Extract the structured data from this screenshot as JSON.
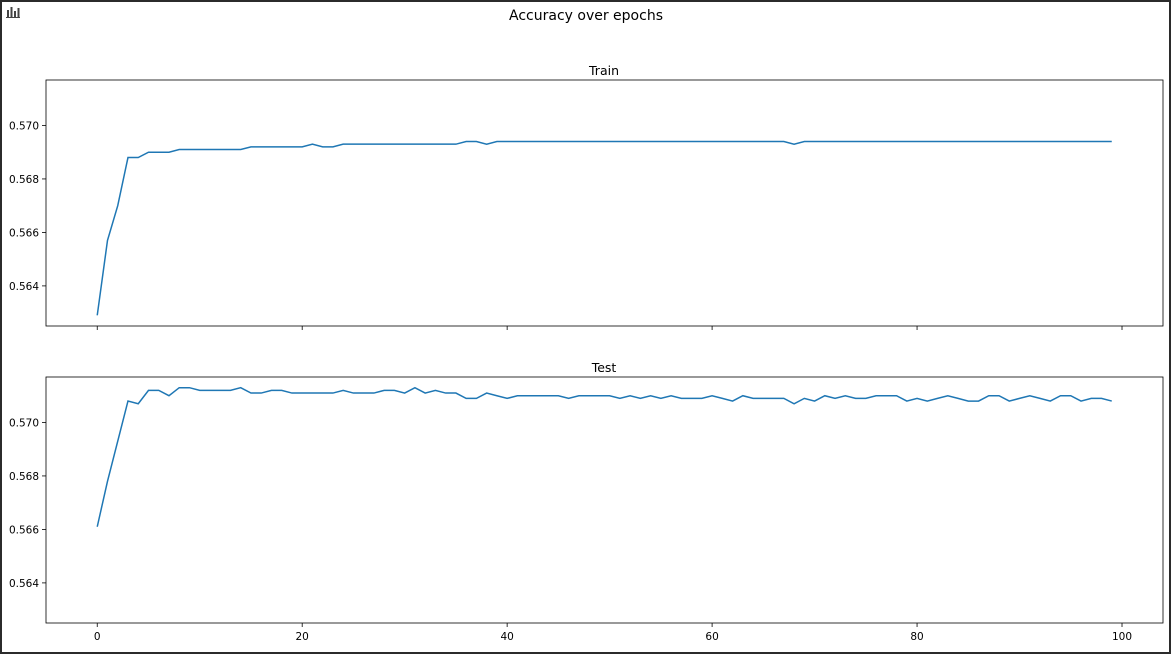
{
  "window": {
    "toolbar_icon": "bar-chart-icon"
  },
  "chart_data": {
    "type": "line",
    "suptitle": "Accuracy over epochs",
    "shared_x": true,
    "xlim": [
      -5,
      104
    ],
    "xticks": [
      0,
      20,
      40,
      60,
      80,
      100
    ],
    "line_color": "#1f77b4",
    "subplots": [
      {
        "title": "Train",
        "ylim": [
          0.5625,
          0.5717
        ],
        "yticks": [
          0.564,
          0.566,
          0.568,
          0.57
        ],
        "ytick_labels": [
          "0.564",
          "0.566",
          "0.568",
          "0.570"
        ],
        "series": [
          {
            "x": [
              0,
              1,
              2,
              3,
              4,
              5,
              6,
              7,
              8,
              9,
              10,
              11,
              12,
              13,
              14,
              15,
              16,
              17,
              18,
              19,
              20,
              21,
              22,
              23,
              24,
              25,
              26,
              27,
              28,
              29,
              30,
              31,
              32,
              33,
              34,
              35,
              36,
              37,
              38,
              39,
              40,
              41,
              42,
              43,
              44,
              45,
              46,
              47,
              48,
              49,
              50,
              51,
              52,
              53,
              54,
              55,
              56,
              57,
              58,
              59,
              60,
              61,
              62,
              63,
              64,
              65,
              66,
              67,
              68,
              69,
              70,
              71,
              72,
              73,
              74,
              75,
              76,
              77,
              78,
              79,
              80,
              81,
              82,
              83,
              84,
              85,
              86,
              87,
              88,
              89,
              90,
              91,
              92,
              93,
              94,
              95,
              96,
              97,
              98,
              99
            ],
            "values": [
              0.5629,
              0.5657,
              0.567,
              0.5688,
              0.5688,
              0.569,
              0.569,
              0.569,
              0.5691,
              0.5691,
              0.5691,
              0.5691,
              0.5691,
              0.5691,
              0.5691,
              0.5692,
              0.5692,
              0.5692,
              0.5692,
              0.5692,
              0.5692,
              0.5693,
              0.5692,
              0.5692,
              0.5693,
              0.5693,
              0.5693,
              0.5693,
              0.5693,
              0.5693,
              0.5693,
              0.5693,
              0.5693,
              0.5693,
              0.5693,
              0.5693,
              0.5694,
              0.5694,
              0.5693,
              0.5694,
              0.5694,
              0.5694,
              0.5694,
              0.5694,
              0.5694,
              0.5694,
              0.5694,
              0.5694,
              0.5694,
              0.5694,
              0.5694,
              0.5694,
              0.5694,
              0.5694,
              0.5694,
              0.5694,
              0.5694,
              0.5694,
              0.5694,
              0.5694,
              0.5694,
              0.5694,
              0.5694,
              0.5694,
              0.5694,
              0.5694,
              0.5694,
              0.5694,
              0.5693,
              0.5694,
              0.5694,
              0.5694,
              0.5694,
              0.5694,
              0.5694,
              0.5694,
              0.5694,
              0.5694,
              0.5694,
              0.5694,
              0.5694,
              0.5694,
              0.5694,
              0.5694,
              0.5694,
              0.5694,
              0.5694,
              0.5694,
              0.5694,
              0.5694,
              0.5694,
              0.5694,
              0.5694,
              0.5694,
              0.5694,
              0.5694,
              0.5694,
              0.5694,
              0.5694,
              0.5694
            ]
          }
        ]
      },
      {
        "title": "Test",
        "ylim": [
          0.5625,
          0.5717
        ],
        "yticks": [
          0.564,
          0.566,
          0.568,
          0.57
        ],
        "ytick_labels": [
          "0.564",
          "0.566",
          "0.568",
          "0.570"
        ],
        "xtick_labels": [
          "0",
          "20",
          "40",
          "60",
          "80",
          "100"
        ],
        "series": [
          {
            "x": [
              0,
              1,
              2,
              3,
              4,
              5,
              6,
              7,
              8,
              9,
              10,
              11,
              12,
              13,
              14,
              15,
              16,
              17,
              18,
              19,
              20,
              21,
              22,
              23,
              24,
              25,
              26,
              27,
              28,
              29,
              30,
              31,
              32,
              33,
              34,
              35,
              36,
              37,
              38,
              39,
              40,
              41,
              42,
              43,
              44,
              45,
              46,
              47,
              48,
              49,
              50,
              51,
              52,
              53,
              54,
              55,
              56,
              57,
              58,
              59,
              60,
              61,
              62,
              63,
              64,
              65,
              66,
              67,
              68,
              69,
              70,
              71,
              72,
              73,
              74,
              75,
              76,
              77,
              78,
              79,
              80,
              81,
              82,
              83,
              84,
              85,
              86,
              87,
              88,
              89,
              90,
              91,
              92,
              93,
              94,
              95,
              96,
              97,
              98,
              99
            ],
            "values": [
              0.5661,
              0.5678,
              0.5693,
              0.5708,
              0.5707,
              0.5712,
              0.5712,
              0.571,
              0.5713,
              0.5713,
              0.5712,
              0.5712,
              0.5712,
              0.5712,
              0.5713,
              0.5711,
              0.5711,
              0.5712,
              0.5712,
              0.5711,
              0.5711,
              0.5711,
              0.5711,
              0.5711,
              0.5712,
              0.5711,
              0.5711,
              0.5711,
              0.5712,
              0.5712,
              0.5711,
              0.5713,
              0.5711,
              0.5712,
              0.5711,
              0.5711,
              0.5709,
              0.5709,
              0.5711,
              0.571,
              0.5709,
              0.571,
              0.571,
              0.571,
              0.571,
              0.571,
              0.5709,
              0.571,
              0.571,
              0.571,
              0.571,
              0.5709,
              0.571,
              0.5709,
              0.571,
              0.5709,
              0.571,
              0.5709,
              0.5709,
              0.5709,
              0.571,
              0.5709,
              0.5708,
              0.571,
              0.5709,
              0.5709,
              0.5709,
              0.5709,
              0.5707,
              0.5709,
              0.5708,
              0.571,
              0.5709,
              0.571,
              0.5709,
              0.5709,
              0.571,
              0.571,
              0.571,
              0.5708,
              0.5709,
              0.5708,
              0.5709,
              0.571,
              0.5709,
              0.5708,
              0.5708,
              0.571,
              0.571,
              0.5708,
              0.5709,
              0.571,
              0.5709,
              0.5708,
              0.571,
              0.571,
              0.5708,
              0.5709,
              0.5709,
              0.5708
            ]
          }
        ]
      }
    ]
  }
}
